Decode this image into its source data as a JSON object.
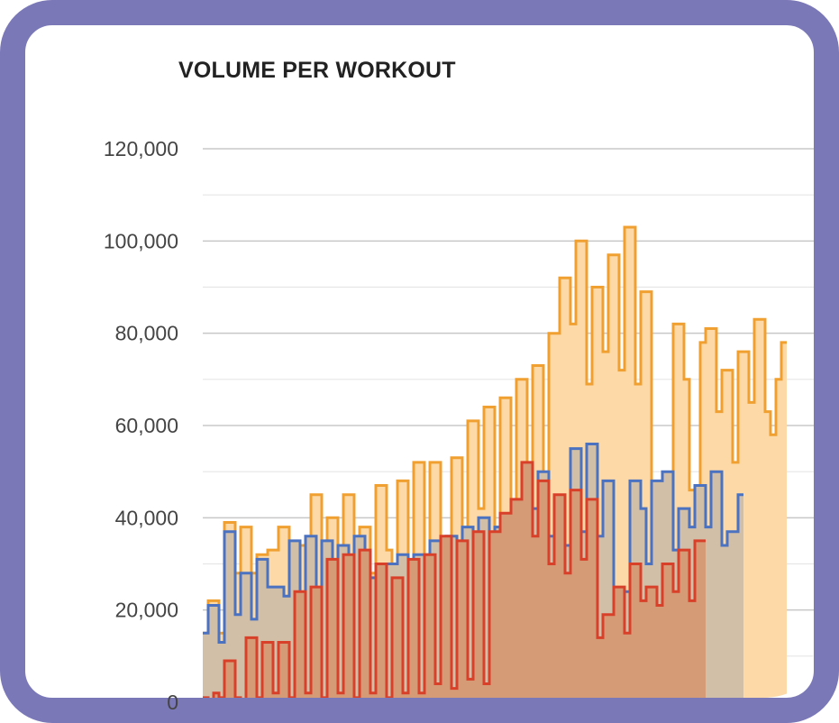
{
  "chart_data": {
    "type": "area",
    "title": "VOLUME PER WORKOUT",
    "xlabel": "",
    "ylabel": "",
    "ylim": [
      0,
      120000
    ],
    "y_ticks": [
      0,
      20000,
      40000,
      60000,
      80000,
      100000,
      120000
    ],
    "y_tick_labels": [
      "0",
      "20,000",
      "40,000",
      "60,000",
      "80,000",
      "100,000",
      "120,000"
    ],
    "grid": true,
    "step": true,
    "series": [
      {
        "color": "#f0a030",
        "fill": "#fcd9a6",
        "values": [
          15000,
          22000,
          22000,
          15000,
          39000,
          39000,
          28000,
          38000,
          38000,
          28000,
          32000,
          32000,
          33000,
          33000,
          38000,
          38000,
          28000,
          34000,
          34000,
          29000,
          45000,
          45000,
          34000,
          40000,
          40000,
          18000,
          45000,
          45000,
          32000,
          38000,
          38000,
          28000,
          47000,
          47000,
          33000,
          15000,
          48000,
          48000,
          30000,
          52000,
          52000,
          30000,
          52000,
          52000,
          33000,
          31000,
          53000,
          53000,
          36000,
          61000,
          61000,
          42000,
          64000,
          64000,
          38000,
          66000,
          66000,
          38000,
          70000,
          70000,
          40000,
          73000,
          73000,
          42000,
          80000,
          80000,
          92000,
          92000,
          82000,
          100000,
          100000,
          69000,
          90000,
          90000,
          76000,
          97000,
          97000,
          72000,
          103000,
          103000,
          69000,
          89000,
          89000,
          34000,
          42000,
          42000,
          44000,
          82000,
          82000,
          70000,
          46000,
          46000,
          78000,
          81000,
          81000,
          63000,
          72000,
          72000,
          52000,
          76000,
          76000,
          65000,
          83000,
          83000,
          63000,
          58000,
          70000,
          78000
        ]
      },
      {
        "color": "#4a72c0",
        "fill": "#d2bfa8",
        "values": [
          15000,
          21000,
          21000,
          13000,
          37000,
          37000,
          19000,
          28000,
          28000,
          18000,
          31000,
          31000,
          25000,
          25000,
          25000,
          23000,
          35000,
          35000,
          18000,
          36000,
          36000,
          17000,
          35000,
          35000,
          16000,
          34000,
          34000,
          20000,
          36000,
          36000,
          14000,
          27000,
          27000,
          25000,
          30000,
          30000,
          32000,
          32000,
          19000,
          32000,
          32000,
          32000,
          35000,
          35000,
          32000,
          36000,
          36000,
          33000,
          38000,
          38000,
          32000,
          40000,
          40000,
          30000,
          38000,
          38000,
          38000,
          42000,
          42000,
          48000,
          48000,
          42000,
          50000,
          50000,
          36000,
          44000,
          44000,
          34000,
          55000,
          55000,
          37000,
          56000,
          56000,
          36000,
          48000,
          48000,
          21000,
          24000,
          24000,
          48000,
          48000,
          42000,
          30000,
          48000,
          48000,
          50000,
          50000,
          33000,
          42000,
          42000,
          38000,
          47000,
          47000,
          38000,
          50000,
          50000,
          34000,
          37000,
          37000,
          45000
        ]
      },
      {
        "color": "#d9402a",
        "fill": "#d59a76",
        "values": [
          1000,
          0,
          2000,
          1000,
          9000,
          9000,
          1000,
          0,
          14000,
          14000,
          1000,
          13000,
          13000,
          2000,
          13000,
          13000,
          1000,
          24000,
          24000,
          2000,
          25000,
          25000,
          1000,
          31000,
          31000,
          2000,
          32000,
          32000,
          1000,
          33000,
          33000,
          2000,
          30000,
          30000,
          1000,
          27000,
          27000,
          2000,
          31000,
          31000,
          2000,
          32000,
          32000,
          4000,
          36000,
          36000,
          3000,
          35000,
          35000,
          5000,
          37000,
          37000,
          4000,
          37000,
          37000,
          41000,
          41000,
          44000,
          44000,
          52000,
          52000,
          36000,
          48000,
          48000,
          30000,
          45000,
          45000,
          28000,
          46000,
          46000,
          31000,
          44000,
          44000,
          14000,
          19000,
          19000,
          25000,
          25000,
          15000,
          30000,
          30000,
          22000,
          25000,
          25000,
          21000,
          30000,
          30000,
          24000,
          33000,
          33000,
          22000,
          35000,
          35000
        ]
      }
    ]
  }
}
